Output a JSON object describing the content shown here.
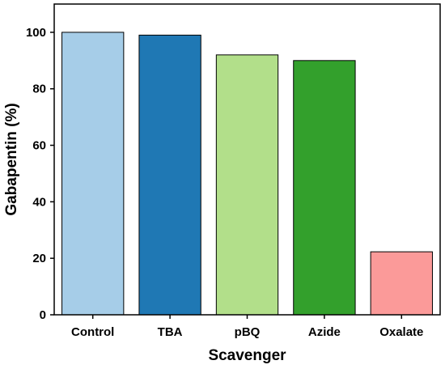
{
  "chart_data": {
    "type": "bar",
    "title": "",
    "xlabel": "Scavenger",
    "ylabel": "Gabapentin (%)",
    "categories": [
      "Control",
      "TBA",
      "pBQ",
      "Azide",
      "Oxalate"
    ],
    "values": [
      100,
      99,
      92,
      90,
      22.3
    ],
    "colors": [
      "#a6cde8",
      "#1f78b4",
      "#b2df8a",
      "#33a02c",
      "#fb9a99"
    ],
    "ylim": [
      0,
      110
    ],
    "yticks": [
      0,
      20,
      40,
      60,
      80,
      100
    ],
    "grid": false,
    "legend": "none"
  }
}
